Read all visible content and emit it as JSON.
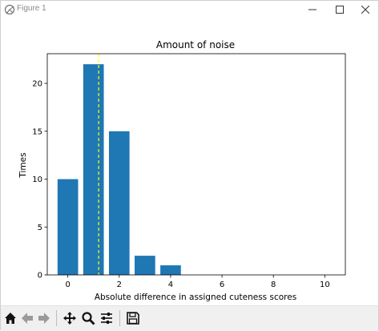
{
  "window": {
    "title": "Figure 1"
  },
  "toolbar": {
    "buttons": [
      "home-icon",
      "back-arrow-icon",
      "forward-arrow-icon",
      "pan-icon",
      "zoom-icon",
      "configure-subplots-icon",
      "save-icon"
    ]
  },
  "colors": {
    "bar": "#1f77b4",
    "marker_line": "#ffff00",
    "axes": "#000000"
  },
  "chart_data": {
    "type": "bar",
    "title": "Amount of noise",
    "xlabel": "Absolute difference in assigned cuteness scores",
    "ylabel": "Times",
    "x": [
      0,
      1,
      2,
      3,
      4
    ],
    "values": [
      10,
      22,
      15,
      2,
      1
    ],
    "xlim": [
      -0.8,
      10.8
    ],
    "ylim": [
      0,
      23.1
    ],
    "xticks": [
      0,
      2,
      4,
      6,
      8,
      10
    ],
    "xtick_labels": [
      "0",
      "2",
      "4",
      "6",
      "8",
      "10"
    ],
    "yticks": [
      0,
      5,
      10,
      15,
      20
    ],
    "ytick_labels": [
      "0",
      "5",
      "10",
      "15",
      "20"
    ],
    "vline": {
      "x": 1.2,
      "style": "dashed"
    },
    "grid": false,
    "legend": "none"
  }
}
